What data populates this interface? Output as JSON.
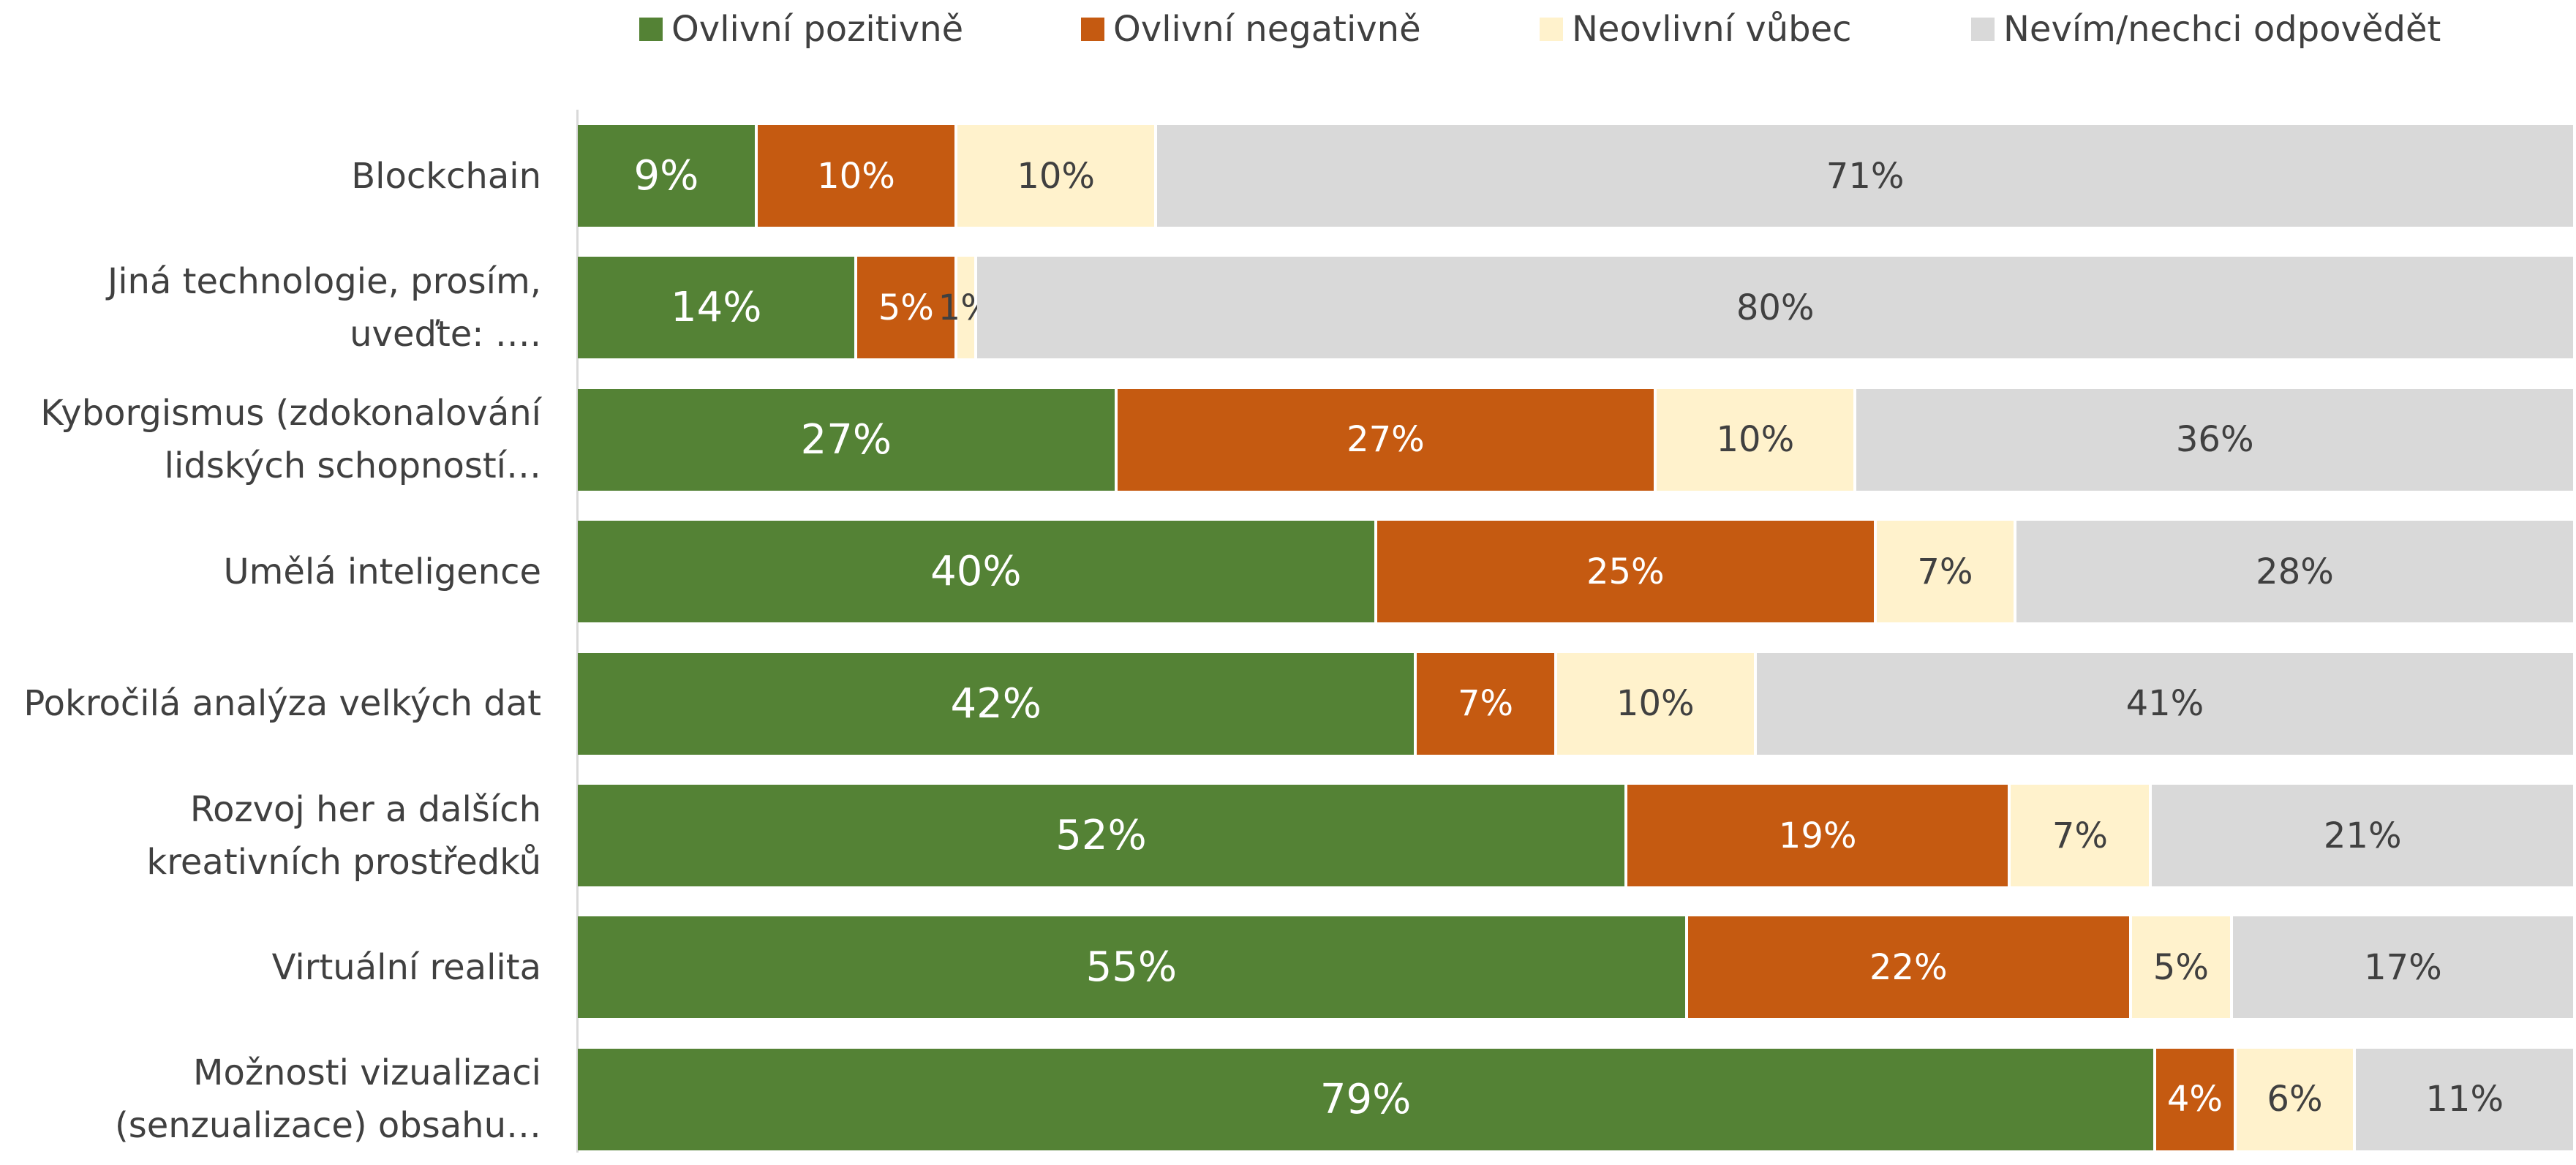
{
  "chart_data": {
    "type": "stacked-bar-horizontal",
    "categories": [
      "Blockchain",
      "Jiná technologie, prosím, uveďte: ….",
      "Kyborgismus (zdokonalování lidských schopností…",
      "Umělá inteligence",
      "Pokročilá analýza velkých dat",
      "Rozvoj her a dalších kreativních prostředků",
      "Virtuální realita",
      "Možnosti vizualizaci (senzualizace) obsahu…"
    ],
    "series": [
      {
        "name": "Ovlivní pozitivně",
        "color": "#548235",
        "values": [
          9,
          14,
          27,
          40,
          42,
          52,
          55,
          79
        ],
        "value_labels": [
          "9%",
          "14%",
          "27%",
          "40%",
          "42%",
          "52%",
          "55%",
          "79%"
        ]
      },
      {
        "name": "Ovlivní negativně",
        "color": "#c55a11",
        "values": [
          10,
          5,
          27,
          25,
          7,
          19,
          22,
          4
        ],
        "value_labels": [
          "10%",
          "5%",
          "27%",
          "25%",
          "7%",
          "19%",
          "22%",
          "4%"
        ]
      },
      {
        "name": "Neovlivní vůbec",
        "color": "#fff2cc",
        "values": [
          10,
          1,
          10,
          7,
          10,
          7,
          5,
          6
        ],
        "value_labels": [
          "10%",
          "1%",
          "10%",
          "7%",
          "10%",
          "7%",
          "5%",
          "6%"
        ]
      },
      {
        "name": "Nevím/nechci odpovědět",
        "color": "#d9d9d9",
        "values": [
          71,
          80,
          36,
          28,
          41,
          21,
          17,
          11
        ],
        "value_labels": [
          "71%",
          "80%",
          "36%",
          "28%",
          "41%",
          "21%",
          "17%",
          "11%"
        ]
      }
    ],
    "legend": "top"
  }
}
